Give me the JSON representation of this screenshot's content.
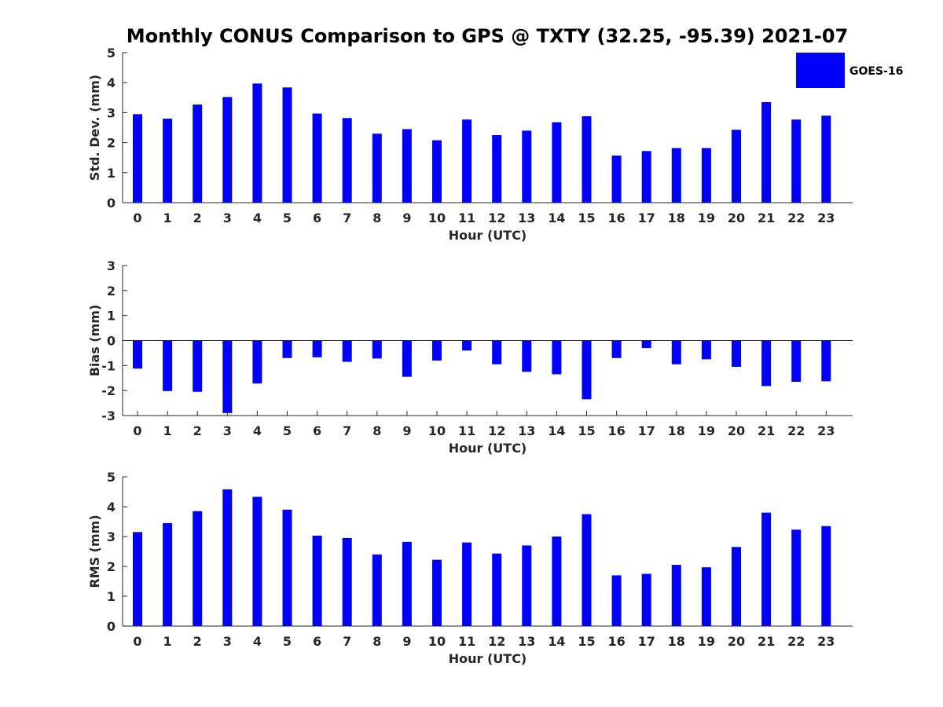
{
  "figure_title": "Monthly CONUS Comparison to GPS @ TXTY (32.25, -95.39) 2021-07",
  "legend": {
    "label": "GOES-16",
    "color": "#0000ff"
  },
  "chart_data": [
    {
      "type": "bar",
      "series_name": "GOES-16",
      "categories": [
        "0",
        "1",
        "2",
        "3",
        "4",
        "5",
        "6",
        "7",
        "8",
        "9",
        "10",
        "11",
        "12",
        "13",
        "14",
        "15",
        "16",
        "17",
        "18",
        "19",
        "20",
        "21",
        "22",
        "23"
      ],
      "values": [
        2.95,
        2.8,
        3.27,
        3.52,
        3.97,
        3.84,
        2.97,
        2.82,
        2.3,
        2.45,
        2.08,
        2.77,
        2.25,
        2.4,
        2.68,
        2.88,
        1.57,
        1.72,
        1.82,
        1.82,
        2.43,
        3.35,
        2.77,
        2.9
      ],
      "xlabel": "Hour (UTC)",
      "ylabel": "Std. Dev. (mm)",
      "ylim": [
        0,
        5
      ],
      "yticks": [
        "0",
        "1",
        "2",
        "3",
        "4",
        "5"
      ]
    },
    {
      "type": "bar",
      "series_name": "GOES-16",
      "categories": [
        "0",
        "1",
        "2",
        "3",
        "4",
        "5",
        "6",
        "7",
        "8",
        "9",
        "10",
        "11",
        "12",
        "13",
        "14",
        "15",
        "16",
        "17",
        "18",
        "19",
        "20",
        "21",
        "22",
        "23"
      ],
      "values": [
        -1.12,
        -2.02,
        -2.05,
        -2.9,
        -1.72,
        -0.7,
        -0.67,
        -0.85,
        -0.72,
        -1.45,
        -0.8,
        -0.4,
        -0.95,
        -1.25,
        -1.35,
        -2.35,
        -0.7,
        -0.3,
        -0.95,
        -0.75,
        -1.05,
        -1.82,
        -1.65,
        -1.63
      ],
      "xlabel": "Hour (UTC)",
      "ylabel": "Bias (mm)",
      "ylim": [
        -3,
        3
      ],
      "yticks": [
        "-3",
        "-2",
        "-1",
        "0",
        "1",
        "2",
        "3"
      ]
    },
    {
      "type": "bar",
      "series_name": "GOES-16",
      "categories": [
        "0",
        "1",
        "2",
        "3",
        "4",
        "5",
        "6",
        "7",
        "8",
        "9",
        "10",
        "11",
        "12",
        "13",
        "14",
        "15",
        "16",
        "17",
        "18",
        "19",
        "20",
        "21",
        "22",
        "23"
      ],
      "values": [
        3.15,
        3.45,
        3.85,
        4.58,
        4.33,
        3.9,
        3.03,
        2.95,
        2.4,
        2.82,
        2.22,
        2.8,
        2.43,
        2.7,
        3.0,
        3.75,
        1.7,
        1.75,
        2.05,
        1.97,
        2.65,
        3.8,
        3.23,
        3.35
      ],
      "xlabel": "Hour (UTC)",
      "ylabel": "RMS (mm)",
      "ylim": [
        0,
        5
      ],
      "yticks": [
        "0",
        "1",
        "2",
        "3",
        "4",
        "5"
      ]
    }
  ]
}
